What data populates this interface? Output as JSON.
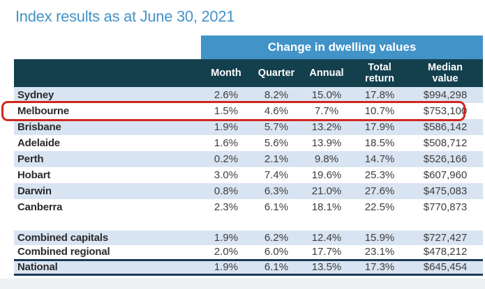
{
  "title": "Index results as at June 30, 2021",
  "table": {
    "group_header": "Change in dwelling values",
    "columns": [
      "Month",
      "Quarter",
      "Annual",
      "Total return",
      "Median value"
    ],
    "rows": [
      {
        "label": "Sydney",
        "month": "2.6%",
        "quarter": "8.2%",
        "annual": "15.0%",
        "total_return": "17.8%",
        "median_value": "$994,298",
        "zebra": true
      },
      {
        "label": "Melbourne",
        "month": "1.5%",
        "quarter": "4.6%",
        "annual": "7.7%",
        "total_return": "10.7%",
        "median_value": "$753,100",
        "zebra": false,
        "highlighted": true
      },
      {
        "label": "Brisbane",
        "month": "1.9%",
        "quarter": "5.7%",
        "annual": "13.2%",
        "total_return": "17.9%",
        "median_value": "$586,142",
        "zebra": true
      },
      {
        "label": "Adelaide",
        "month": "1.6%",
        "quarter": "5.6%",
        "annual": "13.9%",
        "total_return": "18.5%",
        "median_value": "$508,712",
        "zebra": false
      },
      {
        "label": "Perth",
        "month": "0.2%",
        "quarter": "2.1%",
        "annual": "9.8%",
        "total_return": "14.7%",
        "median_value": "$526,166",
        "zebra": true
      },
      {
        "label": "Hobart",
        "month": "3.0%",
        "quarter": "7.4%",
        "annual": "19.6%",
        "total_return": "25.3%",
        "median_value": "$607,960",
        "zebra": false
      },
      {
        "label": "Darwin",
        "month": "0.8%",
        "quarter": "6.3%",
        "annual": "21.0%",
        "total_return": "27.6%",
        "median_value": "$475,083",
        "zebra": true
      },
      {
        "label": "Canberra",
        "month": "2.3%",
        "quarter": "6.1%",
        "annual": "18.1%",
        "total_return": "22.5%",
        "median_value": "$770,873",
        "zebra": false
      },
      {
        "spacer": true
      },
      {
        "label": "Combined capitals",
        "month": "1.9%",
        "quarter": "6.2%",
        "annual": "12.4%",
        "total_return": "15.9%",
        "median_value": "$727,427",
        "zebra": true,
        "summary": true
      },
      {
        "label": "Combined regional",
        "month": "2.0%",
        "quarter": "6.0%",
        "annual": "17.7%",
        "total_return": "23.1%",
        "median_value": "$478,212",
        "zebra": false,
        "summary": true
      },
      {
        "label": "National",
        "month": "1.9%",
        "quarter": "6.1%",
        "annual": "13.5%",
        "total_return": "17.3%",
        "median_value": "$645,454",
        "zebra": true,
        "summary": true,
        "national": true
      }
    ]
  },
  "colors": {
    "title_blue": "#4493c6",
    "band_blue": "#4193c8",
    "header_dark": "#14404e",
    "zebra_light_blue": "#d9e4f2",
    "highlight_red": "#d0271e",
    "rule_navy": "#1c3a57"
  }
}
